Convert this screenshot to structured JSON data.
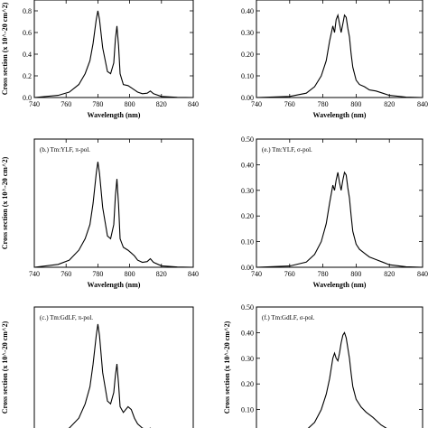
{
  "chart_data": [
    {
      "id": "a",
      "type": "line",
      "title": "",
      "xlabel": "Wavelength (nm)",
      "ylabel": "Cross section (x 10^-20 cm^2)",
      "xlim": [
        740,
        840
      ],
      "ylim": [
        0,
        0.9
      ],
      "xticks": [
        740,
        760,
        780,
        800,
        820,
        840
      ],
      "xtick_labels": [
        "740",
        "760",
        "780",
        "800",
        "820",
        "840"
      ],
      "yticks": [
        0.0,
        0.2,
        0.4,
        0.6,
        0.8
      ],
      "ytick_labels": [
        "0.0",
        "0.2",
        "0.4",
        "0.6",
        "0.8"
      ],
      "x": [
        740,
        755,
        762,
        768,
        772,
        775,
        777,
        779,
        780,
        781,
        783,
        786,
        788,
        790,
        791,
        792,
        793,
        794,
        796,
        799,
        801,
        803,
        805,
        808,
        811,
        813,
        815,
        820,
        830,
        840
      ],
      "y": [
        0.0,
        0.02,
        0.05,
        0.12,
        0.22,
        0.34,
        0.5,
        0.72,
        0.8,
        0.72,
        0.46,
        0.24,
        0.22,
        0.32,
        0.54,
        0.66,
        0.48,
        0.22,
        0.12,
        0.11,
        0.09,
        0.07,
        0.05,
        0.035,
        0.04,
        0.06,
        0.035,
        0.01,
        0.002,
        0.0
      ]
    },
    {
      "id": "d",
      "type": "line",
      "title": "",
      "xlabel": "Wavelength (nm)",
      "ylabel": "",
      "xlim": [
        740,
        840
      ],
      "ylim": [
        0,
        0.45
      ],
      "xticks": [
        740,
        760,
        780,
        800,
        820,
        840
      ],
      "xtick_labels": [
        "740",
        "760",
        "780",
        "800",
        "820",
        "840"
      ],
      "yticks": [
        0.0,
        0.1,
        0.2,
        0.3,
        0.4
      ],
      "ytick_labels": [
        "0.00",
        "0.10",
        "0.20",
        "0.30",
        "0.40"
      ],
      "x": [
        740,
        760,
        770,
        775,
        779,
        782,
        784,
        786,
        787,
        788,
        789,
        790,
        791,
        792,
        793,
        794,
        795,
        796,
        797,
        798,
        800,
        802,
        805,
        808,
        812,
        816,
        820,
        830,
        840
      ],
      "y": [
        0.0,
        0.005,
        0.02,
        0.05,
        0.1,
        0.17,
        0.26,
        0.33,
        0.3,
        0.36,
        0.38,
        0.34,
        0.3,
        0.34,
        0.38,
        0.37,
        0.32,
        0.28,
        0.2,
        0.14,
        0.08,
        0.06,
        0.05,
        0.035,
        0.03,
        0.02,
        0.01,
        0.002,
        0.0
      ]
    },
    {
      "id": "b",
      "type": "line",
      "title": "(b.) Tm:YLF, π-pol.",
      "xlabel": "Wavelength (nm)",
      "ylabel": "Cross section (x 10^-20 cm^2)",
      "xlim": [
        740,
        840
      ],
      "ylim": [
        0,
        0.9
      ],
      "xticks": [
        740,
        760,
        780,
        800,
        820,
        840
      ],
      "xtick_labels": [
        "740",
        "760",
        "780",
        "800",
        "820",
        "840"
      ],
      "yticks": [],
      "ytick_labels": [],
      "x": [
        740,
        755,
        762,
        768,
        772,
        775,
        777,
        779,
        780,
        781,
        783,
        786,
        788,
        790,
        791,
        792,
        793,
        794,
        796,
        799,
        801,
        803,
        805,
        808,
        811,
        813,
        815,
        820,
        830,
        840
      ],
      "y": [
        0.0,
        0.02,
        0.05,
        0.12,
        0.2,
        0.3,
        0.45,
        0.66,
        0.74,
        0.66,
        0.42,
        0.22,
        0.2,
        0.3,
        0.5,
        0.62,
        0.44,
        0.2,
        0.14,
        0.12,
        0.1,
        0.08,
        0.05,
        0.035,
        0.04,
        0.06,
        0.035,
        0.01,
        0.002,
        0.0
      ]
    },
    {
      "id": "e",
      "type": "line",
      "title": "(e.) Tm:YLF, σ-pol.",
      "xlabel": "Wavelength (nm)",
      "ylabel": "",
      "xlim": [
        740,
        840
      ],
      "ylim": [
        0,
        0.5
      ],
      "xticks": [
        740,
        760,
        780,
        800,
        820,
        840
      ],
      "xtick_labels": [
        "740",
        "760",
        "780",
        "800",
        "820",
        "840"
      ],
      "yticks": [
        0.0,
        0.1,
        0.2,
        0.3,
        0.4,
        0.5
      ],
      "ytick_labels": [
        "0.00",
        "0.10",
        "0.20",
        "0.30",
        "0.40",
        "0.50"
      ],
      "x": [
        740,
        760,
        770,
        775,
        779,
        782,
        784,
        786,
        787,
        788,
        789,
        790,
        791,
        792,
        793,
        794,
        795,
        796,
        797,
        798,
        800,
        802,
        805,
        808,
        812,
        816,
        820,
        830,
        840
      ],
      "y": [
        0.0,
        0.005,
        0.02,
        0.05,
        0.1,
        0.17,
        0.25,
        0.32,
        0.3,
        0.34,
        0.37,
        0.33,
        0.3,
        0.34,
        0.37,
        0.36,
        0.31,
        0.27,
        0.2,
        0.14,
        0.09,
        0.07,
        0.055,
        0.04,
        0.03,
        0.02,
        0.01,
        0.002,
        0.0
      ]
    },
    {
      "id": "c",
      "type": "line",
      "title": "(c.) Tm:GdLF, π-pol.",
      "xlabel": "",
      "ylabel": "Cross section (x 10^-20 cm^2)",
      "xlim": [
        740,
        840
      ],
      "ylim": [
        0,
        0.9
      ],
      "xticks": [],
      "xtick_labels": [],
      "yticks": [],
      "ytick_labels": [],
      "x": [
        740,
        755,
        762,
        768,
        772,
        775,
        777,
        779,
        780,
        781,
        783,
        786,
        788,
        790,
        791,
        792,
        793,
        794,
        796,
        799,
        801,
        803,
        805,
        808,
        811,
        813,
        815,
        820,
        830,
        840
      ],
      "y": [
        0.0,
        0.02,
        0.05,
        0.12,
        0.22,
        0.34,
        0.5,
        0.7,
        0.78,
        0.7,
        0.44,
        0.24,
        0.22,
        0.3,
        0.42,
        0.5,
        0.36,
        0.2,
        0.16,
        0.2,
        0.18,
        0.12,
        0.08,
        0.05,
        0.04,
        0.05,
        0.03,
        0.01,
        0.002,
        0.0
      ]
    },
    {
      "id": "f",
      "type": "line",
      "title": "(f.) Tm:GdLF, σ-pol.",
      "xlabel": "",
      "ylabel": "Cross section (x 10^-20 cm^2)",
      "xlim": [
        740,
        840
      ],
      "ylim": [
        0,
        0.5
      ],
      "xticks": [],
      "xtick_labels": [],
      "yticks": [
        0.0,
        0.1,
        0.2,
        0.3,
        0.4,
        0.5
      ],
      "ytick_labels": [
        "",
        "0.10",
        "0.20",
        "0.30",
        "0.40",
        "0.50"
      ],
      "x": [
        740,
        760,
        770,
        775,
        779,
        782,
        784,
        785,
        786,
        787,
        788,
        789,
        790,
        791,
        792,
        793,
        794,
        795,
        796,
        797,
        798,
        800,
        803,
        806,
        810,
        815,
        820,
        830,
        840
      ],
      "y": [
        0.0,
        0.005,
        0.02,
        0.05,
        0.1,
        0.16,
        0.22,
        0.26,
        0.3,
        0.32,
        0.3,
        0.29,
        0.32,
        0.36,
        0.39,
        0.4,
        0.38,
        0.34,
        0.3,
        0.24,
        0.19,
        0.14,
        0.11,
        0.09,
        0.07,
        0.04,
        0.02,
        0.005,
        0.0
      ]
    }
  ],
  "layout_hint": "six panels in two columns; bottom row cropped"
}
